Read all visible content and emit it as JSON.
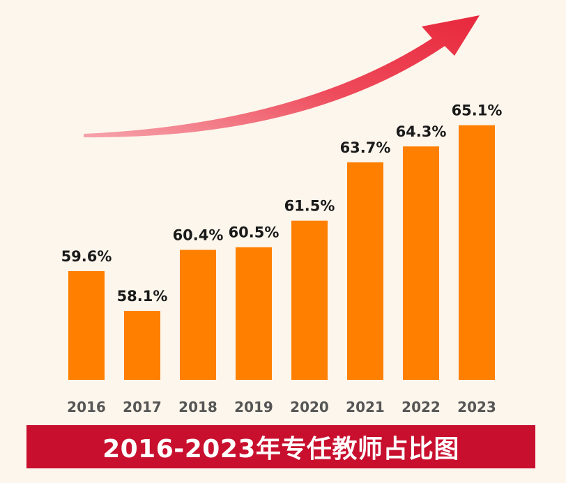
{
  "chart_data": {
    "type": "bar",
    "title": "2016-2023年专任教师占比图",
    "categories": [
      "2016",
      "2017",
      "2018",
      "2019",
      "2020",
      "2021",
      "2022",
      "2023"
    ],
    "series": [
      {
        "values": [
          59.6,
          58.1,
          60.4,
          60.5,
          61.5,
          63.7,
          64.3,
          65.1
        ],
        "labels": [
          "59.6%",
          "58.1%",
          "60.4%",
          "60.5%",
          "61.5%",
          "63.7%",
          "64.3%",
          "65.1%"
        ]
      }
    ],
    "ylim": [
      55.5,
      65.8
    ],
    "grid": false,
    "legend": "none",
    "annotation": "red upward trend arrow",
    "colors": {
      "bar": "#ff7f00",
      "arrow": "#e83a4a",
      "title_band": "#c8102e",
      "background": "#fdf6ec"
    }
  }
}
